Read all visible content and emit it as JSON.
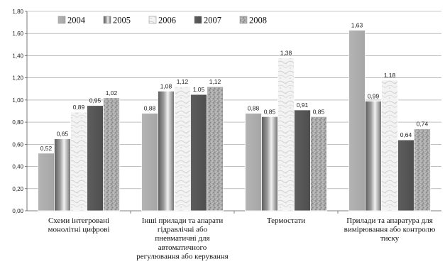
{
  "chart_data": {
    "type": "bar",
    "categories": [
      [
        "Схеми інтегровані",
        "монолітні цифрові"
      ],
      [
        "Інші прилади та апарати",
        "гідравлічні або",
        "пневматичні для",
        "автоматичного",
        "регулювання або керування"
      ],
      [
        "Термостати"
      ],
      [
        "Прилади та апаратура для",
        "вимірювання або контролю",
        "тиску"
      ]
    ],
    "series": [
      {
        "name": "2004",
        "values": [
          0.52,
          0.88,
          0.88,
          1.63
        ],
        "labels": [
          "0,52",
          "0,88",
          "0,88",
          "1,63"
        ],
        "pattern": "gray"
      },
      {
        "name": "2005",
        "values": [
          0.65,
          1.08,
          0.85,
          0.99
        ],
        "labels": [
          "0,65",
          "1,08",
          "0,85",
          "0,99"
        ],
        "pattern": "metal"
      },
      {
        "name": "2006",
        "values": [
          0.89,
          1.12,
          1.38,
          1.18
        ],
        "labels": [
          "0,89",
          "1,12",
          "1,38",
          "1,18"
        ],
        "pattern": "marble"
      },
      {
        "name": "2007",
        "values": [
          0.95,
          1.05,
          0.91,
          0.64
        ],
        "labels": [
          "0,95",
          "1,05",
          "0,91",
          "0,64"
        ],
        "pattern": "dark"
      },
      {
        "name": "2008",
        "values": [
          1.02,
          1.12,
          0.85,
          0.74
        ],
        "labels": [
          "1,02",
          "1,12",
          "0,85",
          "0,74"
        ],
        "pattern": "granite"
      }
    ],
    "yticks": [
      "0,00",
      "0,20",
      "0,40",
      "0,60",
      "0,80",
      "1,00",
      "1,20",
      "1,40",
      "1,60",
      "1,80"
    ],
    "ylim": [
      0,
      1.8
    ],
    "grid": true,
    "legend_position": "top-left inside plot",
    "title": "",
    "xlabel": "",
    "ylabel": ""
  }
}
